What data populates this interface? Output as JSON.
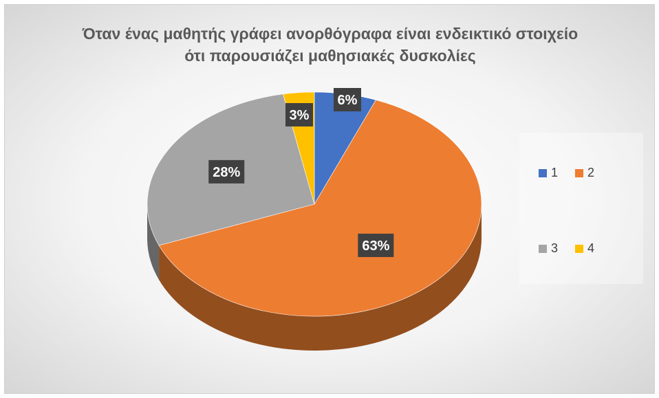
{
  "chart_data": {
    "type": "pie",
    "title": "Όταν ένας μαθητής γράφει ανορθόγραφα είναι ενδεικτικό στοιχείο ότι παρουσιάζει μαθησιακές δυσκολίες",
    "categories": [
      "1",
      "2",
      "3",
      "4"
    ],
    "values": [
      6,
      63,
      28,
      3
    ],
    "data_labels": [
      "6%",
      "63%",
      "28%",
      "3%"
    ],
    "colors": [
      "#4472C4",
      "#ED7D31",
      "#A5A5A5",
      "#FFC000"
    ],
    "style": "3d",
    "legend_position": "right"
  }
}
